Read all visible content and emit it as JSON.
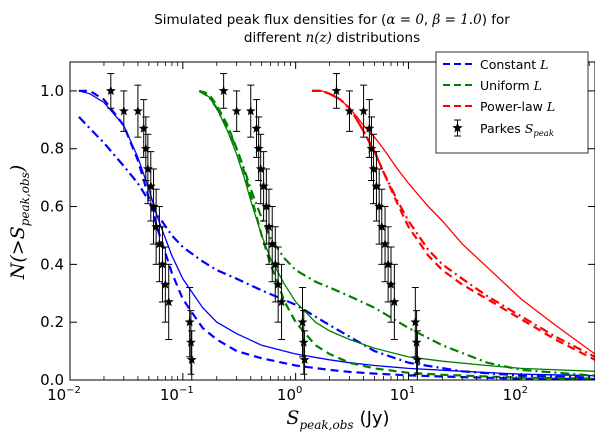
{
  "chart_data": {
    "type": "line",
    "title_line1_pre": "Simulated peak flux densities for (",
    "title_alpha": "α = 0",
    "title_sep": ", ",
    "title_beta": "β = 1.0",
    "title_line1_post": ") for",
    "title_line2_pre": "different ",
    "title_nz": "n(z)",
    "title_line2_post": " distributions",
    "xlabel_main": "S",
    "xlabel_sub": "peak,obs",
    "xlabel_unit": "(Jy)",
    "ylabel": "N(>S",
    "ylabel_sub": "peak,obs",
    "ylabel_close": ")",
    "xscale": "log",
    "xlim": [
      0.01,
      450
    ],
    "ylim": [
      0.0,
      1.1
    ],
    "x_ticks": [
      {
        "value": 0.01,
        "base": "10",
        "exp": "−2"
      },
      {
        "value": 0.1,
        "base": "10",
        "exp": "−1"
      },
      {
        "value": 1,
        "base": "10",
        "exp": "0"
      },
      {
        "value": 10,
        "base": "10",
        "exp": "1"
      },
      {
        "value": 100,
        "base": "10",
        "exp": "2"
      }
    ],
    "y_ticks": [
      "0.0",
      "0.2",
      "0.4",
      "0.6",
      "0.8",
      "1.0"
    ],
    "legend": {
      "position": "top-right",
      "entries": [
        {
          "label": "Constant ",
          "label_italic": "L",
          "label_sub": "",
          "color": "#0000ff",
          "style": "dashed"
        },
        {
          "label": "Uniform ",
          "label_italic": "L",
          "label_sub": "",
          "color": "#008000",
          "style": "dashed"
        },
        {
          "label": "Power-law ",
          "label_italic": "L",
          "label_sub": "",
          "color": "#ff0000",
          "style": "dashed"
        },
        {
          "label": "Parkes ",
          "label_italic": "S",
          "label_sub": "peak",
          "color": "#000000",
          "style": "star-errorbar"
        }
      ]
    },
    "series": [
      {
        "name": "Constant L",
        "color": "#0000ff",
        "style": "dashed",
        "x": [
          0.012,
          0.015,
          0.02,
          0.03,
          0.04,
          0.05,
          0.06,
          0.08,
          0.1,
          0.15,
          0.2,
          0.3,
          0.5,
          1,
          2,
          3,
          5,
          10,
          30,
          100,
          450
        ],
        "y": [
          1.0,
          1.0,
          0.97,
          0.88,
          0.76,
          0.63,
          0.52,
          0.37,
          0.28,
          0.18,
          0.14,
          0.1,
          0.075,
          0.05,
          0.035,
          0.028,
          0.022,
          0.016,
          0.01,
          0.005,
          0.003
        ]
      },
      {
        "name": "Constant L",
        "color": "#0000ff",
        "style": "solid",
        "x": [
          0.012,
          0.015,
          0.02,
          0.03,
          0.04,
          0.05,
          0.06,
          0.08,
          0.1,
          0.15,
          0.2,
          0.3,
          0.5,
          1,
          2,
          3,
          5,
          10,
          30,
          100,
          450
        ],
        "y": [
          1.0,
          0.99,
          0.96,
          0.88,
          0.77,
          0.66,
          0.56,
          0.43,
          0.35,
          0.25,
          0.2,
          0.16,
          0.12,
          0.09,
          0.07,
          0.06,
          0.05,
          0.04,
          0.03,
          0.02,
          0.015
        ]
      },
      {
        "name": "Constant L",
        "color": "#0000ff",
        "style": "dashdot",
        "x": [
          0.012,
          0.015,
          0.02,
          0.03,
          0.04,
          0.05,
          0.06,
          0.08,
          0.1,
          0.15,
          0.2,
          0.3,
          0.5,
          1,
          2,
          3,
          5,
          10,
          30,
          100,
          450
        ],
        "y": [
          0.91,
          0.87,
          0.82,
          0.74,
          0.68,
          0.62,
          0.57,
          0.5,
          0.46,
          0.41,
          0.38,
          0.35,
          0.31,
          0.26,
          0.19,
          0.15,
          0.1,
          0.06,
          0.03,
          0.015,
          0.008
        ]
      },
      {
        "name": "Uniform L",
        "color": "#008000",
        "style": "dashed",
        "x": [
          0.14,
          0.17,
          0.2,
          0.25,
          0.3,
          0.35,
          0.4,
          0.5,
          0.6,
          0.8,
          1.0,
          1.5,
          2,
          3,
          5,
          10,
          20,
          50,
          100,
          450
        ],
        "y": [
          1.0,
          0.99,
          0.95,
          0.88,
          0.8,
          0.72,
          0.64,
          0.5,
          0.4,
          0.27,
          0.2,
          0.12,
          0.09,
          0.06,
          0.04,
          0.025,
          0.018,
          0.012,
          0.008,
          0.005
        ]
      },
      {
        "name": "Uniform L",
        "color": "#008000",
        "style": "solid",
        "x": [
          0.14,
          0.17,
          0.2,
          0.25,
          0.3,
          0.35,
          0.4,
          0.5,
          0.6,
          0.8,
          1.0,
          1.5,
          2,
          3,
          5,
          10,
          20,
          50,
          100,
          450
        ],
        "y": [
          1.0,
          0.98,
          0.94,
          0.86,
          0.78,
          0.7,
          0.62,
          0.5,
          0.42,
          0.33,
          0.27,
          0.2,
          0.17,
          0.14,
          0.11,
          0.08,
          0.065,
          0.05,
          0.04,
          0.03
        ]
      },
      {
        "name": "Uniform L",
        "color": "#008000",
        "style": "dashdot",
        "x": [
          0.14,
          0.17,
          0.2,
          0.25,
          0.3,
          0.35,
          0.4,
          0.5,
          0.6,
          0.8,
          1.0,
          1.5,
          2,
          3,
          5,
          10,
          20,
          50,
          100,
          450
        ],
        "y": [
          1.0,
          0.98,
          0.94,
          0.87,
          0.8,
          0.73,
          0.66,
          0.56,
          0.49,
          0.42,
          0.38,
          0.34,
          0.32,
          0.29,
          0.25,
          0.18,
          0.12,
          0.06,
          0.035,
          0.015
        ]
      },
      {
        "name": "Power-law L",
        "color": "#ff0000",
        "style": "dashed",
        "x": [
          1.4,
          1.7,
          2,
          2.5,
          3,
          3.5,
          4,
          5,
          6,
          8,
          10,
          15,
          20,
          30,
          50,
          100,
          200,
          450
        ],
        "y": [
          1.0,
          1.0,
          0.99,
          0.97,
          0.94,
          0.9,
          0.86,
          0.79,
          0.72,
          0.61,
          0.53,
          0.43,
          0.38,
          0.33,
          0.28,
          0.21,
          0.14,
          0.07
        ]
      },
      {
        "name": "Power-law L",
        "color": "#ff0000",
        "style": "solid",
        "x": [
          1.4,
          1.7,
          2,
          2.5,
          3,
          3.5,
          4,
          5,
          6,
          8,
          10,
          15,
          20,
          30,
          50,
          100,
          200,
          450
        ],
        "y": [
          1.0,
          1.0,
          0.99,
          0.97,
          0.94,
          0.91,
          0.88,
          0.84,
          0.8,
          0.73,
          0.68,
          0.6,
          0.55,
          0.47,
          0.39,
          0.28,
          0.19,
          0.09
        ]
      },
      {
        "name": "Power-law L",
        "color": "#ff0000",
        "style": "dashdot",
        "x": [
          1.4,
          1.7,
          2,
          2.5,
          3,
          3.5,
          4,
          5,
          6,
          8,
          10,
          15,
          20,
          30,
          50,
          100,
          200,
          450
        ],
        "y": [
          1.0,
          1.0,
          0.99,
          0.97,
          0.94,
          0.9,
          0.86,
          0.79,
          0.72,
          0.62,
          0.55,
          0.45,
          0.4,
          0.35,
          0.29,
          0.22,
          0.15,
          0.08
        ]
      }
    ],
    "parkes_groups": [
      {
        "points": [
          {
            "x": 0.023,
            "y": 1.0,
            "err": 0.06
          },
          {
            "x": 0.03,
            "y": 0.93,
            "err": 0.07
          },
          {
            "x": 0.04,
            "y": 0.93,
            "err": 0.09
          },
          {
            "x": 0.045,
            "y": 0.87,
            "err": 0.1
          },
          {
            "x": 0.047,
            "y": 0.8,
            "err": 0.11
          },
          {
            "x": 0.049,
            "y": 0.73,
            "err": 0.12
          },
          {
            "x": 0.052,
            "y": 0.67,
            "err": 0.12
          },
          {
            "x": 0.055,
            "y": 0.6,
            "err": 0.13
          },
          {
            "x": 0.058,
            "y": 0.53,
            "err": 0.13
          },
          {
            "x": 0.062,
            "y": 0.47,
            "err": 0.13
          },
          {
            "x": 0.066,
            "y": 0.4,
            "err": 0.13
          },
          {
            "x": 0.07,
            "y": 0.33,
            "err": 0.13
          },
          {
            "x": 0.075,
            "y": 0.27,
            "err": 0.13
          },
          {
            "x": 0.115,
            "y": 0.2,
            "err": 0.12
          },
          {
            "x": 0.118,
            "y": 0.13,
            "err": 0.11
          },
          {
            "x": 0.12,
            "y": 0.07,
            "err": 0.1
          }
        ]
      },
      {
        "points": [
          {
            "x": 0.23,
            "y": 1.0,
            "err": 0.06
          },
          {
            "x": 0.3,
            "y": 0.93,
            "err": 0.07
          },
          {
            "x": 0.4,
            "y": 0.93,
            "err": 0.09
          },
          {
            "x": 0.45,
            "y": 0.87,
            "err": 0.1
          },
          {
            "x": 0.47,
            "y": 0.8,
            "err": 0.11
          },
          {
            "x": 0.49,
            "y": 0.73,
            "err": 0.12
          },
          {
            "x": 0.52,
            "y": 0.67,
            "err": 0.12
          },
          {
            "x": 0.55,
            "y": 0.6,
            "err": 0.13
          },
          {
            "x": 0.58,
            "y": 0.53,
            "err": 0.13
          },
          {
            "x": 0.62,
            "y": 0.47,
            "err": 0.13
          },
          {
            "x": 0.66,
            "y": 0.4,
            "err": 0.13
          },
          {
            "x": 0.7,
            "y": 0.33,
            "err": 0.13
          },
          {
            "x": 0.75,
            "y": 0.27,
            "err": 0.13
          },
          {
            "x": 1.15,
            "y": 0.2,
            "err": 0.12
          },
          {
            "x": 1.18,
            "y": 0.13,
            "err": 0.11
          },
          {
            "x": 1.2,
            "y": 0.07,
            "err": 0.1
          }
        ]
      },
      {
        "points": [
          {
            "x": 2.3,
            "y": 1.0,
            "err": 0.06
          },
          {
            "x": 3.0,
            "y": 0.93,
            "err": 0.07
          },
          {
            "x": 4.0,
            "y": 0.93,
            "err": 0.09
          },
          {
            "x": 4.5,
            "y": 0.87,
            "err": 0.1
          },
          {
            "x": 4.7,
            "y": 0.8,
            "err": 0.11
          },
          {
            "x": 4.9,
            "y": 0.73,
            "err": 0.12
          },
          {
            "x": 5.2,
            "y": 0.67,
            "err": 0.12
          },
          {
            "x": 5.5,
            "y": 0.6,
            "err": 0.13
          },
          {
            "x": 5.8,
            "y": 0.53,
            "err": 0.13
          },
          {
            "x": 6.2,
            "y": 0.47,
            "err": 0.13
          },
          {
            "x": 6.6,
            "y": 0.4,
            "err": 0.13
          },
          {
            "x": 7.0,
            "y": 0.33,
            "err": 0.13
          },
          {
            "x": 7.5,
            "y": 0.27,
            "err": 0.13
          },
          {
            "x": 11.5,
            "y": 0.2,
            "err": 0.12
          },
          {
            "x": 11.8,
            "y": 0.13,
            "err": 0.11
          },
          {
            "x": 12.0,
            "y": 0.07,
            "err": 0.1
          }
        ]
      }
    ]
  }
}
